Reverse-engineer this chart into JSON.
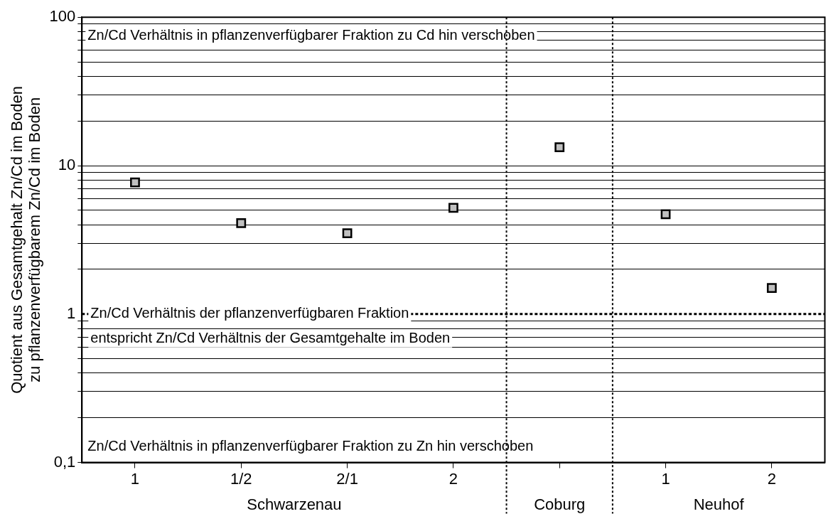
{
  "chart_data": {
    "type": "scatter",
    "ylabel": "Quotient aus Gesamtgehalt Zn/Cd im Boden\nzu pflanzenverfügbarem Zn/Cd im Boden",
    "categories": [
      "1",
      "1/2",
      "2/1",
      "2",
      null,
      "1",
      "2"
    ],
    "series": [
      {
        "color": "#c0c0c0",
        "values": [
          7.7,
          4.1,
          3.5,
          5.2,
          13.3,
          4.7,
          1.5
        ]
      }
    ],
    "log": "y",
    "ylim": [
      0.1,
      100
    ],
    "yticks": [
      {
        "value": 0.1,
        "label": "0,1"
      },
      {
        "value": 0.2,
        "label": null
      },
      {
        "value": 0.3,
        "label": null
      },
      {
        "value": 0.4,
        "label": null
      },
      {
        "value": 0.5,
        "label": null
      },
      {
        "value": 0.6,
        "label": null
      },
      {
        "value": 0.7,
        "label": null
      },
      {
        "value": 0.8,
        "label": null
      },
      {
        "value": 0.9,
        "label": null
      },
      1,
      {
        "value": 2,
        "label": null
      },
      {
        "value": 3,
        "label": null
      },
      {
        "value": 4,
        "label": null
      },
      {
        "value": 5,
        "label": null
      },
      {
        "value": 6,
        "label": null
      },
      {
        "value": 7,
        "label": null
      },
      {
        "value": 8,
        "label": null
      },
      {
        "value": 9,
        "label": null
      },
      10,
      {
        "value": 20,
        "label": null
      },
      {
        "value": 30,
        "label": null
      },
      {
        "value": 40,
        "label": null
      },
      {
        "value": 50,
        "label": null
      },
      {
        "value": 60,
        "label": null
      },
      {
        "value": 70,
        "label": null
      },
      {
        "value": 80,
        "label": null
      },
      {
        "value": 90,
        "label": null
      },
      100
    ],
    "grid": "y",
    "marker": "square",
    "legend": false,
    "ref_lines": [
      {
        "axis": "y",
        "value": 1,
        "label": "Zn/Cd Verhältnis der pflanzenverfügbaren Fraktion\nentspricht Zn/Cd Verhältnis der Gesamtgehalte im Boden",
        "line_style": "dotted"
      }
    ],
    "annotations": [
      "Zn/Cd Verhältnis in pflanzenverfügbarer Fraktion zu Cd hin verschoben",
      "Zn/Cd Verhältnis in pflanzenverfügbarer Fraktion zu Zn hin verschoben",
      "Schwarzenau",
      "Coburg",
      "Neuhof"
    ]
  }
}
